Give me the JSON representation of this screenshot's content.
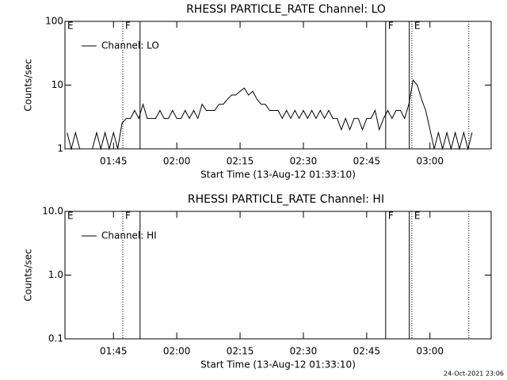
{
  "chart_data": [
    {
      "type": "line",
      "title": "RHESSI PARTICLE_RATE Channel: LO",
      "xlabel": "Start Time (13-Aug-12 01:33:10)",
      "ylabel": "Counts/sec",
      "log_y": true,
      "legend": "upper left",
      "x": [
        94,
        95,
        96,
        97,
        98,
        99,
        100,
        101,
        102,
        103,
        104,
        105,
        106,
        107,
        108,
        109,
        110,
        111,
        112,
        113,
        114,
        115,
        116,
        117,
        118,
        119,
        120,
        121,
        122,
        123,
        124,
        125,
        126,
        127,
        128,
        129,
        130,
        131,
        132,
        133,
        134,
        135,
        136,
        137,
        138,
        139,
        140,
        141,
        142,
        143,
        144,
        145,
        146,
        147,
        148,
        149,
        150,
        151,
        152,
        153,
        154,
        155,
        156,
        157,
        158,
        159,
        160,
        161,
        162,
        163,
        164,
        165,
        166,
        167,
        168,
        169,
        170,
        171,
        172,
        173,
        174,
        175,
        176,
        177,
        178,
        179,
        180,
        181,
        182,
        183,
        184,
        185,
        186,
        187,
        188,
        189,
        190
      ],
      "series": [
        {
          "name": "Channel: LO",
          "color": "#000000",
          "values": [
            1.8,
            1,
            1.8,
            1,
            1,
            1,
            1,
            1.8,
            1,
            1.8,
            1,
            1.8,
            1,
            2.5,
            3,
            3,
            4,
            3,
            5,
            3,
            3,
            3,
            4,
            3,
            3,
            4,
            3,
            3,
            4,
            3,
            4,
            3,
            5,
            4,
            4,
            4,
            5,
            5,
            6,
            7,
            7,
            8,
            9,
            7,
            8,
            6,
            5,
            5,
            4,
            4,
            4,
            3,
            4,
            3,
            4,
            3,
            4,
            3,
            4,
            3,
            4,
            3,
            4,
            3,
            3,
            2,
            3,
            2,
            3,
            3,
            2,
            3,
            3,
            4,
            2,
            3,
            4,
            3,
            4,
            4,
            3,
            5,
            12,
            10,
            6,
            4,
            2,
            1,
            1.8,
            1,
            1.8,
            1,
            1.8,
            1,
            1.8,
            1,
            1.8
          ]
        }
      ],
      "xlim": [
        93.5,
        194.5
      ],
      "xticks": [
        {
          "value": 105,
          "label": "01:45"
        },
        {
          "value": 120,
          "label": "02:00"
        },
        {
          "value": 135,
          "label": "02:15"
        },
        {
          "value": 150,
          "label": "02:30"
        },
        {
          "value": 165,
          "label": "02:45"
        },
        {
          "value": 180,
          "label": "03:00"
        }
      ],
      "ylim": [
        1,
        100
      ],
      "yticks": [
        1,
        10,
        100
      ],
      "markers": [
        {
          "x": 93.5,
          "style": "solid",
          "label": "E"
        },
        {
          "x": 107.2,
          "style": "dotted",
          "label": "F"
        },
        {
          "x": 111.3,
          "style": "solid"
        },
        {
          "x": 169.5,
          "style": "solid",
          "label": "F"
        },
        {
          "x": 175.1,
          "style": "solid"
        },
        {
          "x": 175.7,
          "style": "dotted",
          "label": "E"
        },
        {
          "x": 189.2,
          "style": "dotted"
        }
      ]
    },
    {
      "type": "line",
      "title": "RHESSI PARTICLE_RATE Channel: HI",
      "xlabel": "Start Time (13-Aug-12 01:33:10)",
      "ylabel": "Counts/sec",
      "log_y": true,
      "legend": "upper left",
      "x": [],
      "series": [
        {
          "name": "Channel: HI",
          "color": "#000000",
          "values": []
        }
      ],
      "xlim": [
        93.5,
        194.5
      ],
      "xticks": [
        {
          "value": 105,
          "label": "01:45"
        },
        {
          "value": 120,
          "label": "02:00"
        },
        {
          "value": 135,
          "label": "02:15"
        },
        {
          "value": 150,
          "label": "02:30"
        },
        {
          "value": 165,
          "label": "02:45"
        },
        {
          "value": 180,
          "label": "03:00"
        }
      ],
      "ylim": [
        0.1,
        10
      ],
      "yticks": [
        0.1,
        {
          "value": 1,
          "label": "1.0"
        },
        {
          "value": 10,
          "label": "10.0"
        }
      ],
      "markers": [
        {
          "x": 93.5,
          "style": "solid",
          "label": "E"
        },
        {
          "x": 107.2,
          "style": "dotted",
          "label": "F"
        },
        {
          "x": 111.3,
          "style": "solid"
        },
        {
          "x": 169.5,
          "style": "solid",
          "label": "F"
        },
        {
          "x": 175.1,
          "style": "solid"
        },
        {
          "x": 175.7,
          "style": "dotted",
          "label": "E"
        },
        {
          "x": 189.2,
          "style": "dotted"
        }
      ]
    }
  ],
  "timestamp": "24-Oct-2021 23:06"
}
